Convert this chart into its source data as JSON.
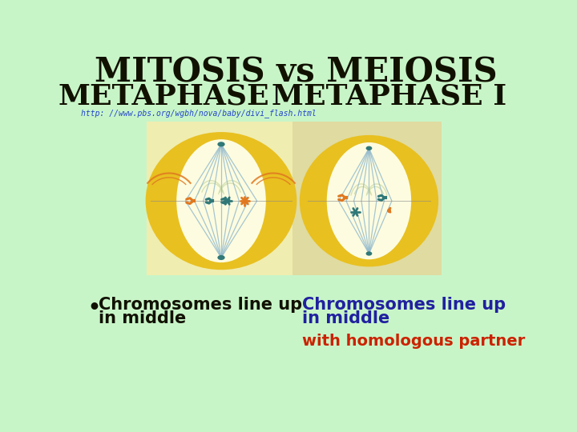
{
  "bg_color": "#c8f5c8",
  "title_line1": "MITOSIS vs MEIOSIS",
  "title_line2_left": "METAPHASE",
  "title_line2_right": "METAPHASE I",
  "url_text": "http: //www.pbs.org/wgbh/nova/baby/divi_flash.html",
  "url_color": "#2244cc",
  "title_color": "#111100",
  "left_panel_color": "#f0edb0",
  "right_panel_color": "#e0dba0",
  "cell_outer_color": "#e8c020",
  "cell_inner_color": "#fdfce0",
  "spindle_color": "#90b8cc",
  "spindle_outer_color": "#c8d8a0",
  "chromosome_orange": "#e07820",
  "chromosome_teal": "#307878",
  "bullet_text_color": "#111100",
  "right_text_color": "#2020a0",
  "partner_text_color": "#cc2200",
  "bullet_line1": "Chromosomes line up",
  "bullet_line2": "in middle",
  "right_line1": "Chromosomes line up",
  "right_line2": "in middle",
  "partner_line": "with homologous partner"
}
